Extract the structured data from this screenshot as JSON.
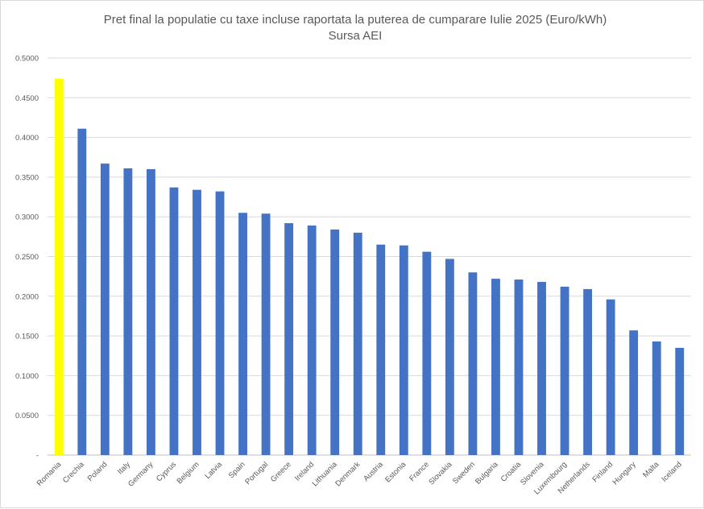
{
  "chart_data": {
    "type": "bar",
    "title": "Pret final la populatie cu taxe incluse raportata la puterea de cumparare Iulie 2025 (Euro/kWh)",
    "subtitle": "Sursa AEI",
    "xlabel": "",
    "ylabel": "",
    "ylim": [
      0,
      0.5
    ],
    "yticks": [
      "-",
      "0.0500",
      "0.1000",
      "0.1500",
      "0.2000",
      "0.2500",
      "0.3000",
      "0.3500",
      "0.4000",
      "0.4500",
      "0.5000"
    ],
    "grid": true,
    "legend": "none",
    "categories": [
      "Romania",
      "Crechia",
      "Poland",
      "Italy",
      "Germany",
      "Cyprus",
      "Belgium",
      "Latvia",
      "Spain",
      "Portugal",
      "Greece",
      "Ireland",
      "Lithuania",
      "Denmark",
      "Austria",
      "Estonia",
      "France",
      "Slovakia",
      "Sweden",
      "Bulgaria",
      "Croatia",
      "Slovenia",
      "Luxembourg",
      "Netherlands",
      "Finland",
      "Hungary",
      "Malta",
      "Iceland"
    ],
    "values": [
      0.474,
      0.411,
      0.367,
      0.361,
      0.36,
      0.337,
      0.334,
      0.332,
      0.305,
      0.304,
      0.292,
      0.289,
      0.284,
      0.28,
      0.265,
      0.264,
      0.256,
      0.247,
      0.23,
      0.222,
      0.221,
      0.218,
      0.212,
      0.209,
      0.196,
      0.157,
      0.143,
      0.135
    ],
    "colors": {
      "default": "#4472c4",
      "highlight": "#ffff00",
      "highlight_category": "Romania"
    }
  }
}
